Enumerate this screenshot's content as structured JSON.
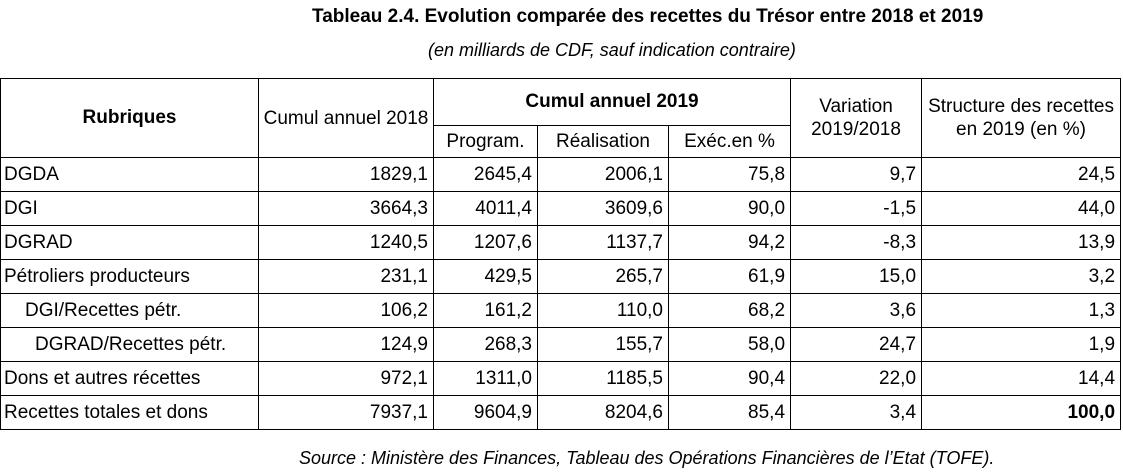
{
  "title": "Tableau 2.4. Evolution comparée des recettes du Trésor entre 2018 et 2019",
  "subtitle": "(en milliards de CDF, sauf indication contraire)",
  "headers": {
    "rubriques": "Rubriques",
    "cumul_2018": "Cumul annuel 2018",
    "cumul_2019": "Cumul annuel 2019",
    "program": "Program.",
    "realisation": "Réalisation",
    "exec": "Exéc.en %",
    "variation": "Variation 2019/2018",
    "structure": "Structure  des recettes en 2019 (en %)"
  },
  "rows": [
    {
      "label": "DGDA",
      "cumul_2018": "1829,1",
      "program": "2645,4",
      "realisation": "2006,1",
      "exec": "75,8",
      "variation": "9,7",
      "structure": "24,5"
    },
    {
      "label": "DGI",
      "cumul_2018": "3664,3",
      "program": "4011,4",
      "realisation": "3609,6",
      "exec": "90,0",
      "variation": "-1,5",
      "structure": "44,0"
    },
    {
      "label": "DGRAD",
      "cumul_2018": "1240,5",
      "program": "1207,6",
      "realisation": "1137,7",
      "exec": "94,2",
      "variation": "-8,3",
      "structure": "13,9"
    },
    {
      "label": "Pétroliers producteurs",
      "cumul_2018": "231,1",
      "program": "429,5",
      "realisation": "265,7",
      "exec": "61,9",
      "variation": "15,0",
      "structure": "3,2"
    },
    {
      "label": "DGI/Recettes pétr.",
      "cumul_2018": "106,2",
      "program": "161,2",
      "realisation": "110,0",
      "exec": "68,2",
      "variation": "3,6",
      "structure": "1,3"
    },
    {
      "label": "DGRAD/Recettes pétr.",
      "cumul_2018": "124,9",
      "program": "268,3",
      "realisation": "155,7",
      "exec": "58,0",
      "variation": "24,7",
      "structure": "1,9"
    },
    {
      "label": "Dons et autres récettes",
      "cumul_2018": "972,1",
      "program": "1311,0",
      "realisation": "1185,5",
      "exec": "90,4",
      "variation": "22,0",
      "structure": "14,4"
    },
    {
      "label": "Recettes totales et dons",
      "cumul_2018": "7937,1",
      "program": "9604,9",
      "realisation": "8204,6",
      "exec": "85,4",
      "variation": "3,4",
      "structure": "100,0"
    }
  ],
  "source": "Source : Ministère des Finances, Tableau des Opérations Financières de l’Etat (TOFE)."
}
